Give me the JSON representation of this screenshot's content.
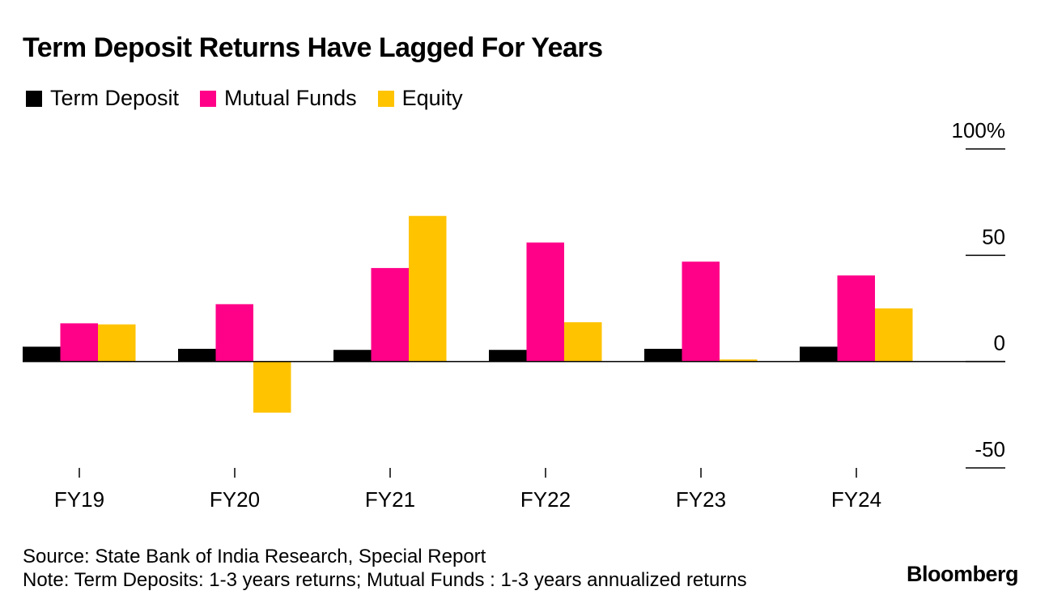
{
  "chart_data": {
    "type": "bar",
    "title": "Term Deposit Returns Have Lagged For Years",
    "categories": [
      "FY19",
      "FY20",
      "FY21",
      "FY22",
      "FY23",
      "FY24"
    ],
    "series": [
      {
        "name": "Term Deposit",
        "color": "#000000",
        "values": [
          7,
          6,
          5.5,
          5.5,
          6,
          7
        ]
      },
      {
        "name": "Mutual Funds",
        "color": "#ff0088",
        "values": [
          18,
          27,
          44,
          56,
          47,
          40.5
        ]
      },
      {
        "name": "Equity",
        "color": "#ffc300",
        "values": [
          17.5,
          -24,
          68.5,
          18.5,
          1,
          25
        ]
      }
    ],
    "y_ticks": [
      {
        "value": 100,
        "label": "100%"
      },
      {
        "value": 50,
        "label": "50"
      },
      {
        "value": 0,
        "label": "0"
      },
      {
        "value": -50,
        "label": "-50"
      }
    ],
    "ylim": [
      -50,
      100
    ],
    "source": "Source: State Bank of India Research, Special Report",
    "note": "Note: Term Deposits: 1-3 years returns; Mutual Funds : 1-3 years annualized returns",
    "brand": "Bloomberg"
  }
}
